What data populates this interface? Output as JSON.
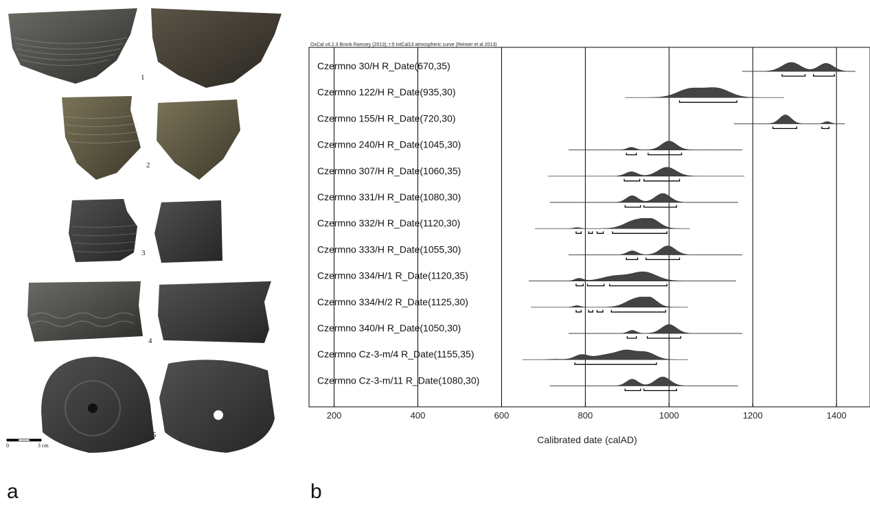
{
  "panels": {
    "a": "a",
    "b": "b"
  },
  "finds": [
    {
      "num": "1"
    },
    {
      "num": "2"
    },
    {
      "num": "3"
    },
    {
      "num": "4"
    },
    {
      "num": "5"
    }
  ],
  "scale_bar": {
    "start": "0",
    "end": "3 cm"
  },
  "chart_data": {
    "type": "range",
    "header": "OxCal v4.2.3 Bronk Ramsey (2013); r:5 IntCal13 atmospheric curve (Reimer et al 2013)",
    "xlabel": "Calibrated date (calAD)",
    "xlim": [
      140,
      1480
    ],
    "xticks": [
      200,
      400,
      600,
      800,
      1000,
      1200,
      1400
    ],
    "grid_x": true,
    "samples": [
      {
        "label": "Czermno 30/H R_Date(670,35)",
        "line": [
          1175,
          1445
        ],
        "peaks": [
          [
            1292,
            1.0,
            22
          ],
          [
            1375,
            0.9,
            18
          ]
        ],
        "ranges": [
          [
            1270,
            1325
          ],
          [
            1345,
            1395
          ]
        ]
      },
      {
        "label": "Czermno 122/H R_Date(935,30)",
        "line": [
          895,
          1275
        ],
        "peaks": [
          [
            1050,
            0.95,
            30
          ],
          [
            1115,
            1.0,
            30
          ]
        ],
        "ranges": [
          [
            1025,
            1162
          ]
        ]
      },
      {
        "label": "Czermno 155/H R_Date(720,30)",
        "line": [
          1155,
          1420
        ],
        "peaks": [
          [
            1278,
            1.0,
            14
          ],
          [
            1378,
            0.25,
            8
          ]
        ],
        "ranges": [
          [
            1248,
            1305
          ],
          [
            1365,
            1382
          ]
        ]
      },
      {
        "label": "Czermno 240/H R_Date(1045,30)",
        "line": [
          760,
          1175
        ],
        "peaks": [
          [
            910,
            0.3,
            10
          ],
          [
            1000,
            1.0,
            18
          ]
        ],
        "ranges": [
          [
            898,
            922
          ],
          [
            950,
            1030
          ]
        ]
      },
      {
        "label": "Czermno 307/H R_Date(1060,35)",
        "line": [
          710,
          1180
        ],
        "peaks": [
          [
            910,
            0.5,
            14
          ],
          [
            995,
            1.0,
            22
          ]
        ],
        "ranges": [
          [
            893,
            930
          ],
          [
            940,
            1025
          ]
        ]
      },
      {
        "label": "Czermno 331/H R_Date(1080,30)",
        "line": [
          715,
          1165
        ],
        "peaks": [
          [
            912,
            0.75,
            14
          ],
          [
            985,
            1.0,
            18
          ]
        ],
        "ranges": [
          [
            895,
            932
          ],
          [
            940,
            1018
          ]
        ]
      },
      {
        "label": "Czermno 332/H R_Date(1120,30)",
        "line": [
          680,
          1050
        ],
        "peaks": [
          [
            780,
            0.12,
            8
          ],
          [
            920,
            0.9,
            26
          ],
          [
            960,
            0.85,
            20
          ]
        ],
        "ranges": [
          [
            778,
            790
          ],
          [
            808,
            817
          ],
          [
            828,
            843
          ],
          [
            865,
            995
          ]
        ]
      },
      {
        "label": "Czermno 333/H R_Date(1055,30)",
        "line": [
          760,
          1175
        ],
        "peaks": [
          [
            912,
            0.45,
            12
          ],
          [
            997,
            1.0,
            18
          ]
        ],
        "ranges": [
          [
            898,
            925
          ],
          [
            945,
            1025
          ]
        ]
      },
      {
        "label": "Czermno 334/H/1 R_Date(1120,35)",
        "line": [
          665,
          1160
        ],
        "peaks": [
          [
            785,
            0.3,
            10
          ],
          [
            870,
            0.55,
            30
          ],
          [
            940,
            1.0,
            30
          ]
        ],
        "ranges": [
          [
            778,
            795
          ],
          [
            805,
            845
          ],
          [
            858,
            995
          ]
        ]
      },
      {
        "label": "Czermno 334/H/2 R_Date(1125,30)",
        "line": [
          670,
          1045
        ],
        "peaks": [
          [
            780,
            0.18,
            8
          ],
          [
            920,
            0.9,
            24
          ],
          [
            955,
            0.85,
            18
          ]
        ],
        "ranges": [
          [
            778,
            790
          ],
          [
            808,
            818
          ],
          [
            828,
            842
          ],
          [
            862,
            992
          ]
        ]
      },
      {
        "label": "Czermno 340/H R_Date(1050,30)",
        "line": [
          760,
          1175
        ],
        "peaks": [
          [
            912,
            0.35,
            10
          ],
          [
            1000,
            1.0,
            18
          ]
        ],
        "ranges": [
          [
            900,
            922
          ],
          [
            948,
            1028
          ]
        ]
      },
      {
        "label": "Czermno Cz-3-m/4 R_Date(1155,35)",
        "line": [
          650,
          1045
        ],
        "peaks": [
          [
            730,
            0.05,
            15
          ],
          [
            790,
            0.5,
            16
          ],
          [
            860,
            0.6,
            34
          ],
          [
            900,
            0.7,
            20
          ],
          [
            945,
            0.8,
            22
          ]
        ],
        "ranges": [
          [
            775,
            970
          ]
        ]
      },
      {
        "label": "Czermno Cz-3-m/11 R_Date(1080,30)",
        "line": [
          715,
          1165
        ],
        "peaks": [
          [
            912,
            0.75,
            14
          ],
          [
            985,
            1.0,
            18
          ]
        ],
        "ranges": [
          [
            895,
            932
          ],
          [
            940,
            1018
          ]
        ]
      }
    ]
  }
}
